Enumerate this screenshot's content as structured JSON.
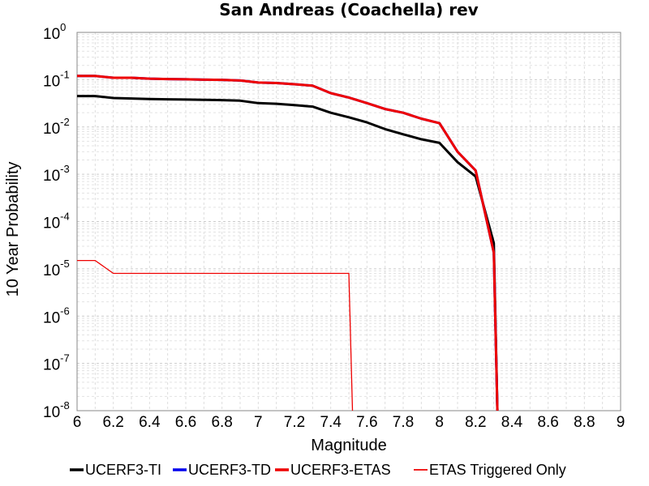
{
  "chart_data": {
    "type": "line",
    "title": "San Andreas (Coachella) rev",
    "xlabel": "Magnitude",
    "ylabel": "10 Year Probability",
    "xlim": [
      6,
      9
    ],
    "ylim": [
      1e-08,
      1
    ],
    "yscale": "log",
    "grid": true,
    "legend_position": "bottom",
    "x_ticks": [
      "6",
      "6.2",
      "6.4",
      "6.6",
      "6.8",
      "7",
      "7.2",
      "7.4",
      "7.6",
      "7.8",
      "8",
      "8.2",
      "8.4",
      "8.6",
      "8.8",
      "9"
    ],
    "y_ticks": [
      {
        "base": "10",
        "exp": "0"
      },
      {
        "base": "10",
        "exp": "-1"
      },
      {
        "base": "10",
        "exp": "-2"
      },
      {
        "base": "10",
        "exp": "-3"
      },
      {
        "base": "10",
        "exp": "-4"
      },
      {
        "base": "10",
        "exp": "-5"
      },
      {
        "base": "10",
        "exp": "-6"
      },
      {
        "base": "10",
        "exp": "-7"
      },
      {
        "base": "10",
        "exp": "-8"
      }
    ],
    "series": [
      {
        "name": "UCERF3-TI",
        "color": "#000000",
        "x": [
          6.0,
          6.1,
          6.2,
          6.3,
          6.4,
          6.5,
          6.6,
          6.7,
          6.8,
          6.9,
          7.0,
          7.1,
          7.2,
          7.3,
          7.4,
          7.5,
          7.6,
          7.7,
          7.8,
          7.9,
          8.0,
          8.1,
          8.2,
          8.3,
          8.32
        ],
        "y": [
          0.045,
          0.045,
          0.041,
          0.04,
          0.039,
          0.0385,
          0.038,
          0.0375,
          0.037,
          0.036,
          0.032,
          0.031,
          0.029,
          0.027,
          0.02,
          0.016,
          0.0125,
          0.009,
          0.007,
          0.0055,
          0.0046,
          0.0018,
          0.0009,
          3.5e-05,
          1e-08
        ]
      },
      {
        "name": "UCERF3-TD",
        "color": "#0000ee",
        "x": [
          6.0,
          6.1,
          6.2,
          6.3,
          6.4,
          6.5,
          6.6,
          6.7,
          6.8,
          6.9,
          7.0,
          7.1,
          7.2,
          7.3,
          7.4,
          7.5,
          7.6,
          7.7,
          7.8,
          7.9,
          8.0,
          8.1,
          8.2,
          8.3,
          8.32
        ],
        "y": [
          0.12,
          0.12,
          0.11,
          0.11,
          0.105,
          0.103,
          0.102,
          0.1,
          0.099,
          0.096,
          0.087,
          0.085,
          0.08,
          0.075,
          0.052,
          0.042,
          0.032,
          0.024,
          0.02,
          0.015,
          0.012,
          0.003,
          0.0012,
          2.2e-05,
          1e-08
        ]
      },
      {
        "name": "UCERF3-ETAS",
        "color": "#ee0000",
        "x": [
          6.0,
          6.1,
          6.2,
          6.3,
          6.4,
          6.5,
          6.6,
          6.7,
          6.8,
          6.9,
          7.0,
          7.1,
          7.2,
          7.3,
          7.4,
          7.5,
          7.6,
          7.7,
          7.8,
          7.9,
          8.0,
          8.1,
          8.2,
          8.3,
          8.32
        ],
        "y": [
          0.12,
          0.12,
          0.11,
          0.11,
          0.105,
          0.103,
          0.102,
          0.1,
          0.099,
          0.096,
          0.087,
          0.085,
          0.08,
          0.075,
          0.052,
          0.042,
          0.032,
          0.024,
          0.02,
          0.015,
          0.012,
          0.003,
          0.0012,
          2.2e-05,
          1e-08
        ]
      },
      {
        "name": "ETAS Triggered Only",
        "color": "#ee0000",
        "x": [
          6.0,
          6.1,
          6.2,
          6.3,
          6.4,
          6.5,
          6.6,
          6.7,
          6.8,
          6.9,
          7.0,
          7.1,
          7.2,
          7.3,
          7.4,
          7.5,
          7.52
        ],
        "y": [
          1.5e-05,
          1.5e-05,
          8e-06,
          8e-06,
          8e-06,
          8e-06,
          8e-06,
          8e-06,
          8e-06,
          8e-06,
          8e-06,
          8e-06,
          8e-06,
          8e-06,
          8e-06,
          8e-06,
          1e-08
        ]
      }
    ]
  }
}
